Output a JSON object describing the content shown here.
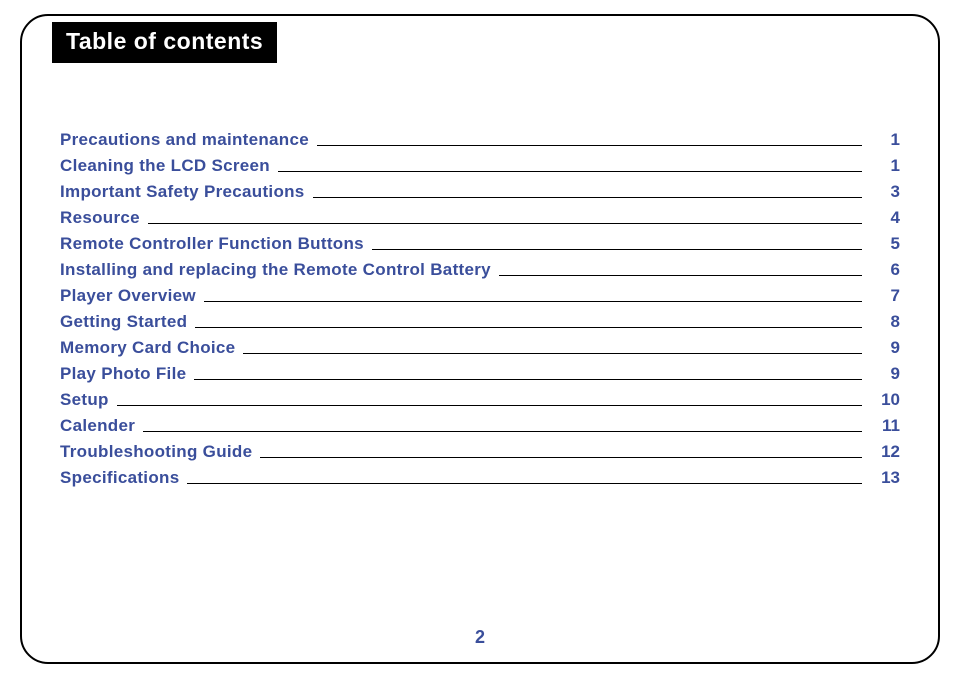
{
  "title": "Table of contents",
  "page_number": "2",
  "colors": {
    "text": "#3a4e9b",
    "frame": "#000000",
    "title_bg": "#000000",
    "title_fg": "#ffffff",
    "line": "#000000",
    "background": "#ffffff"
  },
  "typography": {
    "title_fontsize": 23,
    "entry_fontsize": 17,
    "page_number_fontsize": 18,
    "font_family": "Arial",
    "bold": true
  },
  "toc": [
    {
      "label": "Precautions and maintenance",
      "page": "1"
    },
    {
      "label": "Cleaning the LCD Screen",
      "page": "1"
    },
    {
      "label": "Important Safety Precautions",
      "page": "3"
    },
    {
      "label": "Resource",
      "page": "4"
    },
    {
      "label": "Remote Controller Function Buttons",
      "page": "5"
    },
    {
      "label": "Installing and replacing the Remote Control Battery",
      "page": "6"
    },
    {
      "label": "Player Overview",
      "page": "7"
    },
    {
      "label": "Getting Started",
      "page": "8"
    },
    {
      "label": "Memory Card Choice",
      "page": "9"
    },
    {
      "label": "Play Photo File",
      "page": "9"
    },
    {
      "label": "Setup",
      "page": "10"
    },
    {
      "label": "Calender",
      "page": "11"
    },
    {
      "label": "Troubleshooting Guide",
      "page": "12"
    },
    {
      "label": "Specifications",
      "page": "13"
    }
  ]
}
